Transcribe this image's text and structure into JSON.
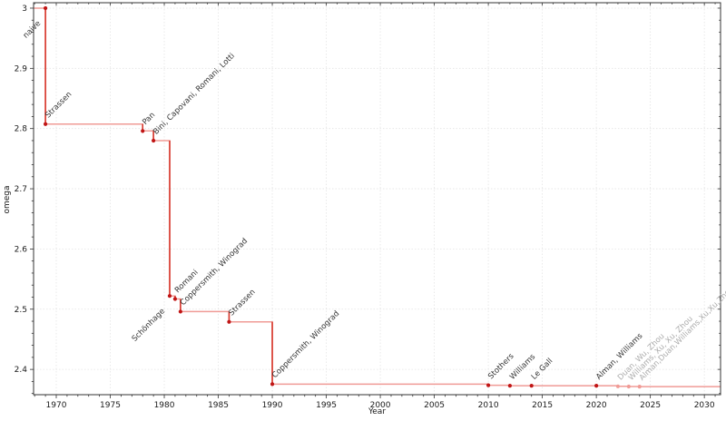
{
  "chart_data": {
    "type": "line",
    "subtype": "step-post",
    "title": "",
    "xlabel": "Year",
    "ylabel": "omega",
    "xlim": [
      1967.9,
      2031.5
    ],
    "ylim": [
      2.358,
      3.009
    ],
    "xticks": [
      1970,
      1975,
      1980,
      1985,
      1990,
      1995,
      2000,
      2005,
      2010,
      2015,
      2020,
      2025,
      2030
    ],
    "yticks": [
      3,
      2.9,
      2.8,
      2.7,
      2.6,
      2.5,
      2.4
    ],
    "minor_x_step": 1,
    "minor_y_step": 0.02,
    "grid": true,
    "legend": "none",
    "colors": {
      "step_line": "#f09b96",
      "drop_line": "#d7392e",
      "marker": "#c01515",
      "marker_faded": "#f09b96",
      "label": "#333333",
      "label_faded": "#ababab",
      "grid": "#e4e4e4",
      "axis": "#333333",
      "tick_label": "#1a1a1a"
    },
    "points": [
      {
        "year": 1969,
        "omega": 3.0,
        "label": "naive",
        "label_side": "below-left",
        "faded": false
      },
      {
        "year": 1969,
        "omega": 2.8074,
        "label": "Strassen",
        "label_side": "above-right",
        "faded": false
      },
      {
        "year": 1978,
        "omega": 2.796,
        "label": "Pan",
        "label_side": "above-right",
        "faded": false
      },
      {
        "year": 1979,
        "omega": 2.78,
        "label": "Bini, Capovani, Romani, Lotti",
        "label_side": "above-right",
        "faded": false
      },
      {
        "year": 1981,
        "omega": 2.522,
        "label": "Schönhage",
        "label_side": "below-left",
        "faded": false
      },
      {
        "year": 1981,
        "omega": 2.517,
        "label": "Romani",
        "label_side": "above-right",
        "faded": false
      },
      {
        "year": 1981,
        "omega": 2.496,
        "label": "Coppersmith, Winograd",
        "label_side": "above-right",
        "faded": false
      },
      {
        "year": 1986,
        "omega": 2.479,
        "label": "Strassen",
        "label_side": "above-right",
        "faded": false
      },
      {
        "year": 1990,
        "omega": 2.3755,
        "label": "Coppersmith, Winograd",
        "label_side": "above-right",
        "faded": false
      },
      {
        "year": 2010,
        "omega": 2.3737,
        "label": "Stothers",
        "label_side": "above-right",
        "faded": false
      },
      {
        "year": 2012,
        "omega": 2.3729,
        "label": "Williams",
        "label_side": "above-right",
        "faded": false
      },
      {
        "year": 2014,
        "omega": 2.3728639,
        "label": "Le Gall",
        "label_side": "above-right",
        "faded": false
      },
      {
        "year": 2020,
        "omega": 2.3728596,
        "label": "Alman, Williams",
        "label_side": "above-right",
        "faded": false
      },
      {
        "year": 2022,
        "omega": 2.371866,
        "label": "Duan, Wu, Zhou",
        "label_side": "above-right",
        "faded": true
      },
      {
        "year": 2023,
        "omega": 2.371552,
        "label": "Williams, Xu, Xu, Zhou",
        "label_side": "above-right",
        "faded": true
      },
      {
        "year": 2024,
        "omega": 2.371339,
        "label": "Alman,Duan,Williams,Xu,Xu,Zhou",
        "label_side": "above-right",
        "faded": true
      }
    ]
  }
}
